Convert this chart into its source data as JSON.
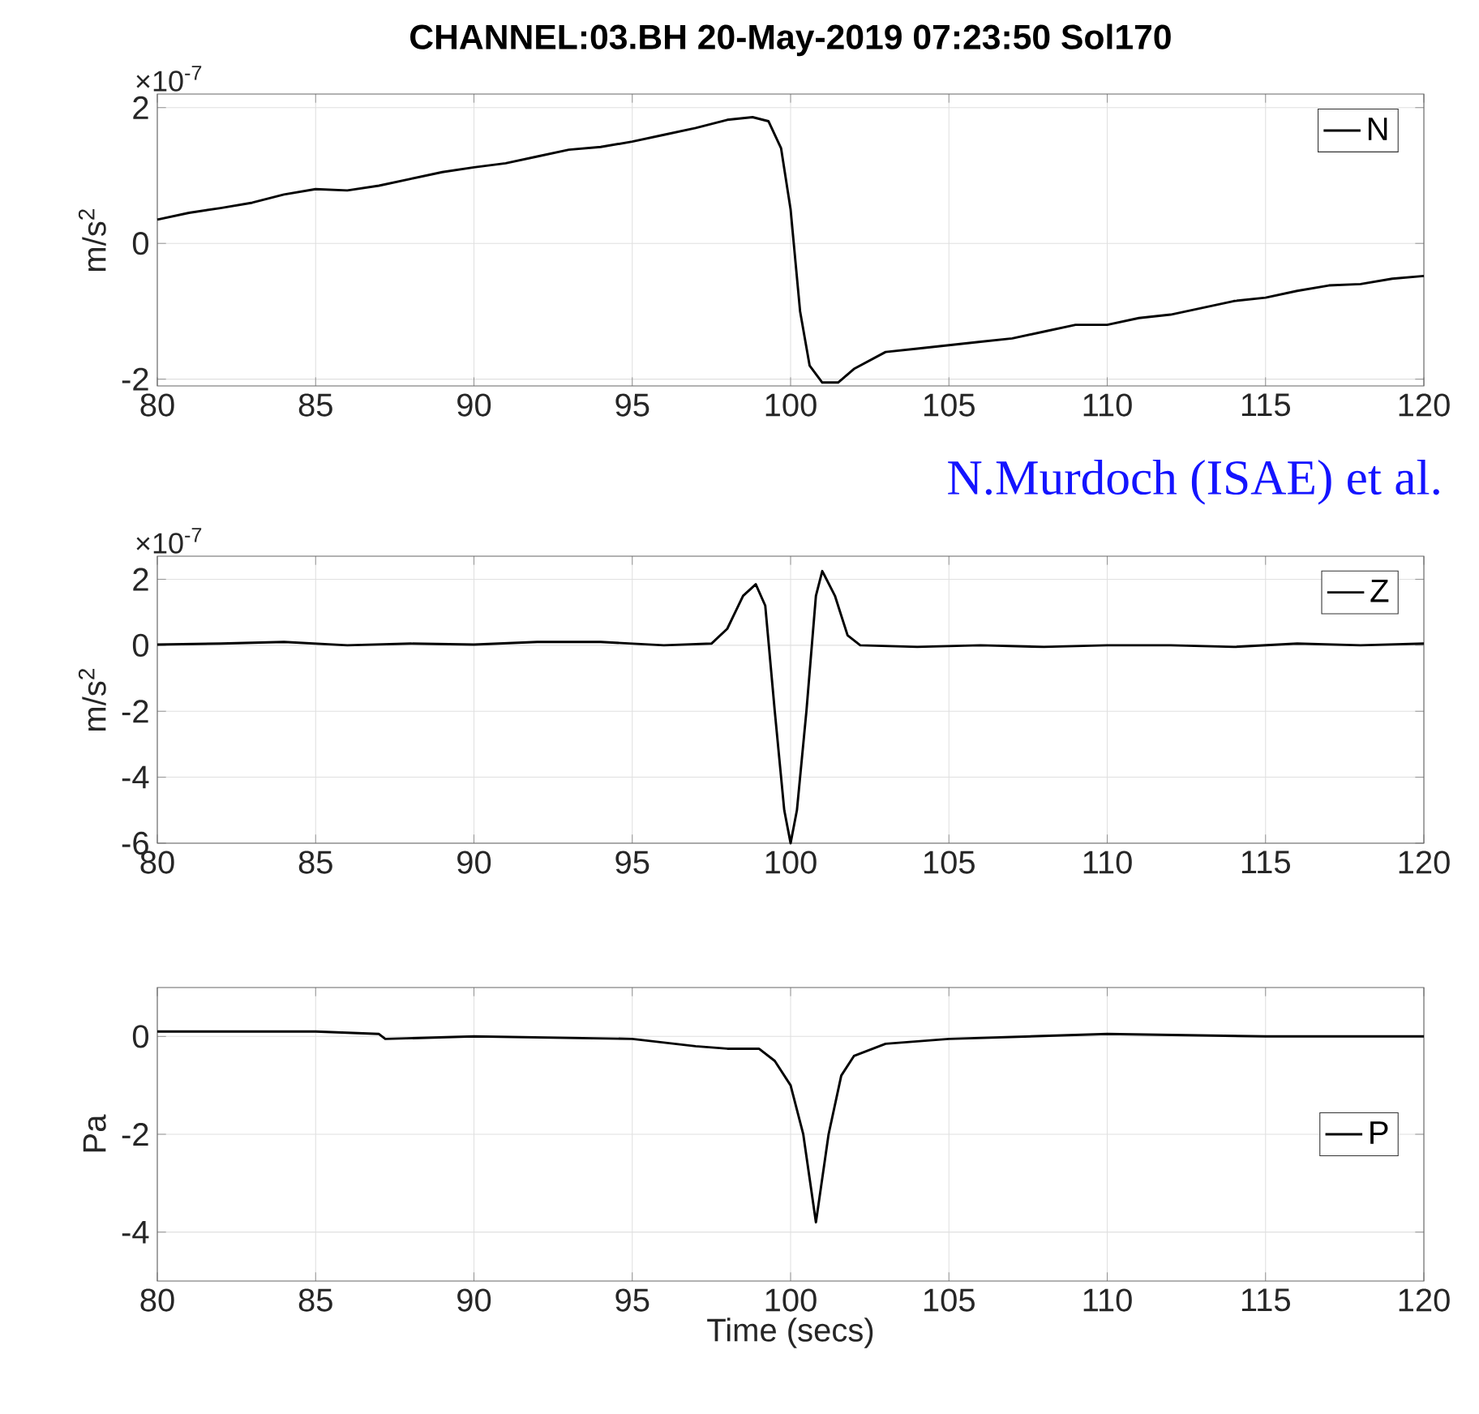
{
  "chart_data": [
    {
      "type": "line",
      "title": "CHANNEL:03.BH 20-May-2019 07:23:50 Sol170",
      "ylabel": "m/s$^{2}$",
      "annotations": [
        "×10$^{-7}$",
        "N.Murdoch (ISAE) et al."
      ],
      "x": [
        80,
        81,
        82,
        83,
        84,
        85,
        86,
        87,
        88,
        89,
        90,
        91,
        92,
        93,
        94,
        95,
        96,
        97,
        98,
        98.8,
        99.3,
        99.7,
        100,
        100.3,
        100.6,
        101,
        101.5,
        102,
        103,
        104,
        105,
        106,
        107,
        108,
        109,
        110,
        111,
        112,
        113,
        114,
        115,
        116,
        117,
        118,
        119,
        120
      ],
      "series": [
        {
          "name": "N",
          "color": "#000000",
          "values": [
            0.35,
            0.45,
            0.52,
            0.6,
            0.72,
            0.8,
            0.78,
            0.85,
            0.95,
            1.05,
            1.12,
            1.18,
            1.28,
            1.38,
            1.42,
            1.5,
            1.6,
            1.7,
            1.82,
            1.86,
            1.8,
            1.4,
            0.5,
            -1.0,
            -1.8,
            -2.05,
            -2.05,
            -1.85,
            -1.6,
            -1.55,
            -1.5,
            -1.45,
            -1.4,
            -1.3,
            -1.2,
            -1.2,
            -1.1,
            -1.05,
            -0.95,
            -0.85,
            -0.8,
            -0.7,
            -0.62,
            -0.6,
            -0.52,
            -0.48
          ]
        }
      ],
      "xlim": [
        80,
        120
      ],
      "xticks": [
        80,
        85,
        90,
        95,
        100,
        105,
        110,
        115,
        120
      ],
      "ylim": [
        -2.1,
        2.2
      ],
      "yticks": [
        -2,
        0,
        2
      ],
      "grid": true,
      "legend": "top right"
    },
    {
      "type": "line",
      "ylabel": "m/s$^{2}$",
      "annotations": [
        "×10$^{-7}$"
      ],
      "x": [
        80,
        82,
        84,
        86,
        88,
        90,
        92,
        94,
        96,
        97.5,
        98,
        98.5,
        98.9,
        99.2,
        99.5,
        99.8,
        100,
        100.2,
        100.5,
        100.8,
        101,
        101.4,
        101.8,
        102.2,
        104,
        106,
        108,
        110,
        112,
        114,
        116,
        118,
        120
      ],
      "series": [
        {
          "name": "Z",
          "color": "#000000",
          "values": [
            0.02,
            0.05,
            0.1,
            0,
            0.05,
            0.02,
            0.1,
            0.1,
            0,
            0.05,
            0.5,
            1.5,
            1.85,
            1.2,
            -2,
            -5,
            -6,
            -5,
            -2,
            1.5,
            2.25,
            1.5,
            0.3,
            0,
            -0.05,
            0,
            -0.05,
            0,
            0,
            -0.05,
            0.05,
            0,
            0.05
          ]
        }
      ],
      "xlim": [
        80,
        120
      ],
      "xticks": [
        80,
        85,
        90,
        95,
        100,
        105,
        110,
        115,
        120
      ],
      "ylim": [
        -6,
        2.7
      ],
      "yticks": [
        -6,
        -4,
        -2,
        0,
        2
      ],
      "grid": true,
      "legend": "top right"
    },
    {
      "type": "line",
      "ylabel": "Pa",
      "xlabel": "Time (secs)",
      "x": [
        80,
        85,
        87,
        87.2,
        90,
        95,
        97,
        98,
        99,
        99.5,
        100,
        100.4,
        100.8,
        101.2,
        101.6,
        102,
        103,
        105,
        110,
        115,
        120
      ],
      "series": [
        {
          "name": "P",
          "color": "#000000",
          "values": [
            0.1,
            0.1,
            0.05,
            -0.05,
            0,
            -0.05,
            -0.2,
            -0.25,
            -0.25,
            -0.5,
            -1.0,
            -2.0,
            -3.8,
            -2.0,
            -0.8,
            -0.4,
            -0.15,
            -0.05,
            0.05,
            0,
            0
          ]
        }
      ],
      "xlim": [
        80,
        120
      ],
      "xticks": [
        80,
        85,
        90,
        95,
        100,
        105,
        110,
        115,
        120
      ],
      "ylim": [
        -5,
        1
      ],
      "yticks": [
        -4,
        -2,
        0
      ],
      "grid": true,
      "legend": "right"
    }
  ]
}
